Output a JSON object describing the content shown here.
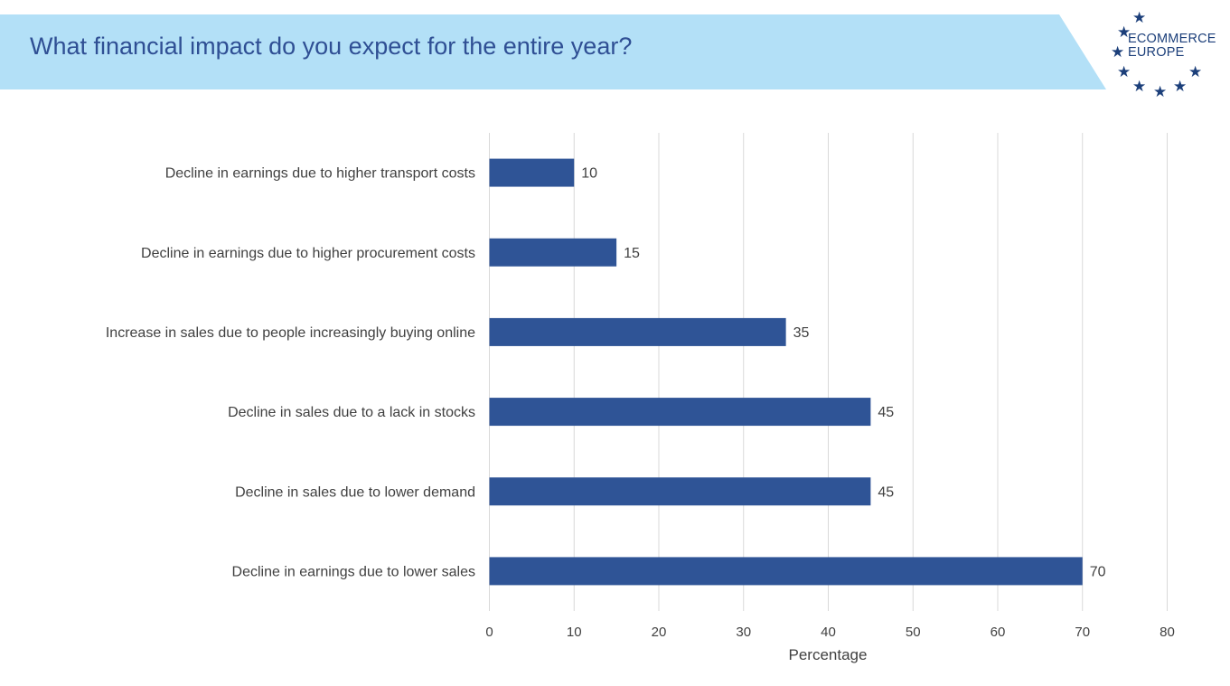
{
  "header": {
    "title": "What financial impact do you expect for the entire year?"
  },
  "logo": {
    "line1": "ECOMMERCE",
    "line2": "EUROPE",
    "icon": "star-icon",
    "color": "#1c3f7a"
  },
  "colors": {
    "banner": "#b3e0f7",
    "title": "#2f4f94",
    "bar": "#2f5496",
    "grid": "#d9d9d9",
    "text": "#404040"
  },
  "chart_data": {
    "type": "bar",
    "orientation": "horizontal",
    "categories": [
      "Decline in earnings due to higher transport costs",
      "Decline in earnings due to higher procurement costs",
      "Increase in sales due to people increasingly buying online",
      "Decline in sales due to a lack in stocks",
      "Decline in sales due to lower demand",
      "Decline in earnings due to lower sales"
    ],
    "values": [
      10,
      15,
      35,
      45,
      45,
      70
    ],
    "data_labels": [
      "10",
      "15",
      "35",
      "45",
      "45",
      "70"
    ],
    "xlabel": "Percentage",
    "ylabel": "",
    "xlim": [
      0,
      80
    ],
    "x_ticks": [
      "0",
      "10",
      "20",
      "30",
      "40",
      "50",
      "60",
      "70",
      "80"
    ],
    "grid": true,
    "legend": "none"
  }
}
